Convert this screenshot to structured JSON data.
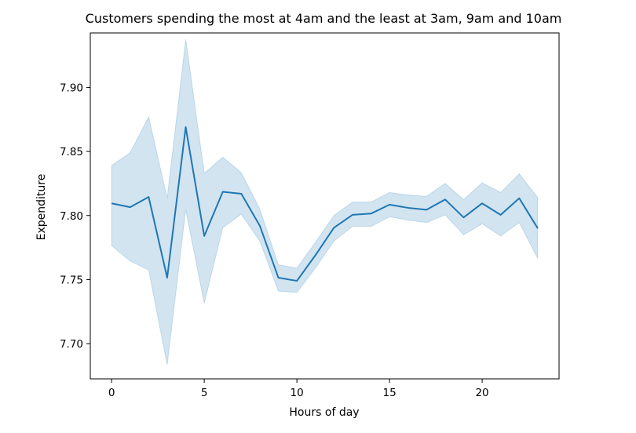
{
  "chart_data": {
    "type": "line",
    "title": "Customers spending the most at 4am and the least at 3am, 9am and 10am",
    "xlabel": "Hours of day",
    "ylabel": "Expenditure",
    "xlim": [
      -1.15,
      24.15
    ],
    "ylim": [
      7.6725,
      7.9425
    ],
    "xticks": [
      0,
      5,
      10,
      15,
      20
    ],
    "xtick_labels": [
      "0",
      "5",
      "10",
      "15",
      "20"
    ],
    "yticks": [
      7.7,
      7.75,
      7.8,
      7.85,
      7.9
    ],
    "ytick_labels": [
      "7.70",
      "7.75",
      "7.80",
      "7.85",
      "7.90"
    ],
    "grid": false,
    "line_color": "#1f77b4",
    "band_color": "#1f77b4",
    "series": [
      {
        "x": [
          0,
          1,
          2,
          3,
          4,
          5,
          6,
          7,
          8,
          9,
          10,
          11,
          12,
          13,
          14,
          15,
          16,
          17,
          18,
          19,
          20,
          21,
          22,
          23
        ],
        "values": [
          7.8095,
          7.8065,
          7.8145,
          7.7515,
          7.869,
          7.784,
          7.8185,
          7.817,
          7.792,
          7.7515,
          7.749,
          7.769,
          7.7905,
          7.8005,
          7.8015,
          7.8085,
          7.806,
          7.8045,
          7.8125,
          7.7985,
          7.8095,
          7.8005,
          7.8135,
          7.79
        ],
        "ci_lower": [
          7.7765,
          7.7645,
          7.7575,
          7.6835,
          7.8045,
          7.7315,
          7.7905,
          7.801,
          7.78,
          7.741,
          7.74,
          7.759,
          7.78,
          7.7915,
          7.7915,
          7.799,
          7.7965,
          7.7945,
          7.8005,
          7.785,
          7.7935,
          7.784,
          7.7945,
          7.7665
        ],
        "ci_upper": [
          7.839,
          7.849,
          7.877,
          7.8135,
          7.9375,
          7.833,
          7.8455,
          7.8335,
          7.805,
          7.7615,
          7.759,
          7.779,
          7.8,
          7.8105,
          7.8105,
          7.818,
          7.816,
          7.815,
          7.825,
          7.8125,
          7.8255,
          7.818,
          7.8325,
          7.814
        ]
      }
    ]
  }
}
